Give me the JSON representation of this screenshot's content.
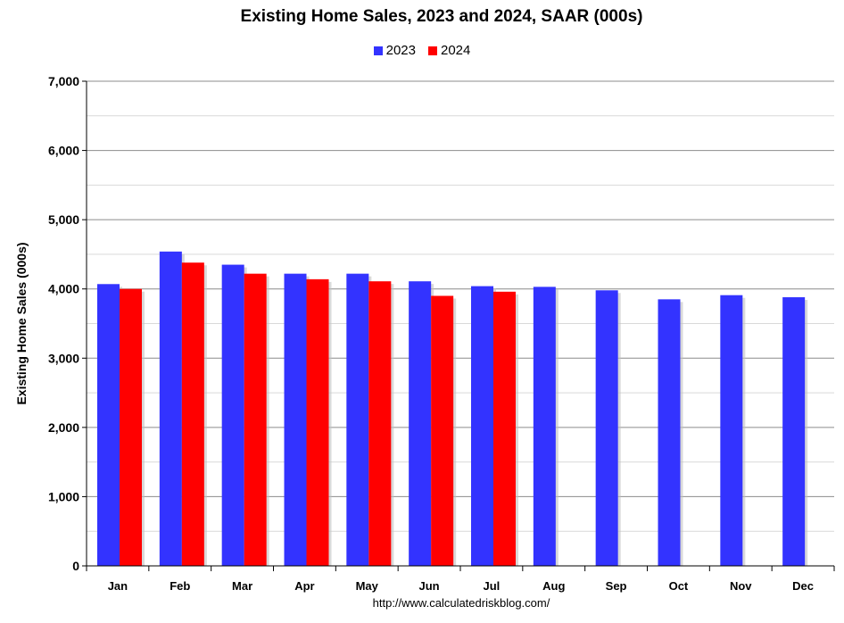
{
  "chart_data": {
    "type": "bar",
    "title": "Existing Home Sales,  2023 and 2024, SAAR (000s)",
    "ylabel": "Existing Home Sales (000s)",
    "xlabel": "",
    "source": "http://www.calculatedriskblog.com/",
    "categories": [
      "Jan",
      "Feb",
      "Mar",
      "Apr",
      "May",
      "Jun",
      "Jul",
      "Aug",
      "Sep",
      "Oct",
      "Nov",
      "Dec"
    ],
    "series": [
      {
        "name": "2023",
        "color": "#3333ff",
        "values": [
          4070,
          4540,
          4350,
          4220,
          4220,
          4110,
          4040,
          4030,
          3980,
          3850,
          3910,
          3880
        ]
      },
      {
        "name": "2024",
        "color": "#ff0000",
        "values": [
          4000,
          4380,
          4220,
          4140,
          4110,
          3900,
          3960,
          null,
          null,
          null,
          null,
          null
        ]
      }
    ],
    "ylim": [
      0,
      7000
    ],
    "yticks": [
      0,
      1000,
      2000,
      3000,
      4000,
      5000,
      6000,
      7000
    ],
    "ytick_labels": [
      "0",
      "1,000",
      "2,000",
      "3,000",
      "4,000",
      "5,000",
      "6,000",
      "7,000"
    ],
    "minor_gridlines": true,
    "legend_position": "top-center"
  }
}
